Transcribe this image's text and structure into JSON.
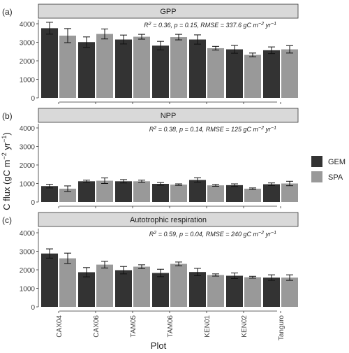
{
  "figure": {
    "y_axis_label_main": "C flux (gC m",
    "y_axis_label_sup1": "−2",
    "y_axis_label_mid": " yr",
    "y_axis_label_sup2": "−1",
    "y_axis_label_end": ")",
    "x_axis_label": "Plot",
    "legend": [
      {
        "label": "GEM",
        "color": "#333333"
      },
      {
        "label": "SPA",
        "color": "#999999"
      }
    ]
  },
  "chart_data": [
    {
      "type": "bar",
      "panel_letter": "(a)",
      "title": "GPP",
      "stats": {
        "r2": "0.36",
        "p": "0.15",
        "rmse": "337.6"
      },
      "categories": [
        "CAX04",
        "CAX06",
        "TAM05",
        "TAM06",
        "KEN01",
        "KEN02",
        "Tanguro"
      ],
      "ylim": [
        0,
        4000
      ],
      "yticks": [
        0,
        1000,
        2000,
        3000,
        4000
      ],
      "series": [
        {
          "name": "GEM",
          "values": [
            3760,
            3010,
            3150,
            2820,
            3150,
            2620,
            2570
          ],
          "errors": [
            320,
            280,
            240,
            230,
            250,
            210,
            180
          ]
        },
        {
          "name": "SPA",
          "values": [
            3360,
            3450,
            3300,
            3280,
            2680,
            2320,
            2620
          ],
          "errors": [
            380,
            270,
            130,
            150,
            100,
            100,
            200
          ]
        }
      ]
    },
    {
      "type": "bar",
      "panel_letter": "(b)",
      "title": "NPP",
      "stats": {
        "r2": "0.38",
        "p": "0.14",
        "rmse": "125"
      },
      "categories": [
        "CAX04",
        "CAX06",
        "TAM05",
        "TAM06",
        "KEN01",
        "KEN02",
        "Tanguro"
      ],
      "ylim": [
        0,
        4000
      ],
      "yticks": [
        0,
        1000,
        2000,
        3000,
        4000
      ],
      "series": [
        {
          "name": "GEM",
          "values": [
            860,
            1120,
            1120,
            980,
            1190,
            910,
            960
          ],
          "errors": [
            100,
            60,
            90,
            70,
            120,
            70,
            70
          ]
        },
        {
          "name": "SPA",
          "values": [
            720,
            1150,
            1120,
            940,
            900,
            720,
            1000
          ],
          "errors": [
            150,
            150,
            60,
            40,
            50,
            40,
            120
          ]
        }
      ]
    },
    {
      "type": "bar",
      "panel_letter": "(c)",
      "title": "Autotrophic respiration",
      "stats": {
        "r2": "0.59",
        "p": "0.04",
        "rmse": "240"
      },
      "categories": [
        "CAX04",
        "CAX06",
        "TAM05",
        "TAM06",
        "KEN01",
        "KEN02",
        "Tanguro"
      ],
      "ylim": [
        0,
        4000
      ],
      "yticks": [
        0,
        1000,
        2000,
        3000,
        4000
      ],
      "series": [
        {
          "name": "GEM",
          "values": [
            2880,
            1870,
            1980,
            1830,
            1880,
            1680,
            1580
          ],
          "errors": [
            250,
            250,
            200,
            200,
            200,
            150,
            150
          ]
        },
        {
          "name": "SPA",
          "values": [
            2620,
            2280,
            2170,
            2320,
            1720,
            1600,
            1580
          ],
          "errors": [
            280,
            180,
            100,
            100,
            60,
            50,
            150
          ]
        }
      ]
    }
  ]
}
